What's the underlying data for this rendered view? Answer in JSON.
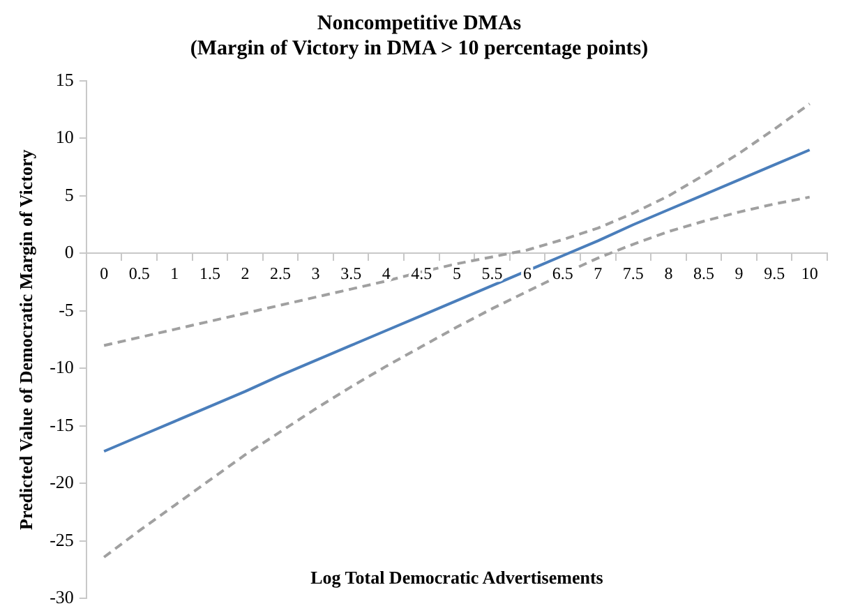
{
  "chart_data": {
    "type": "line",
    "title": "Noncompetitive DMAs\n(Margin of Victory in DMA > 10 percentage points)",
    "xlabel": "Log Total Democratic Advertisements",
    "ylabel": "Predicted Value of Democratic Margin of Victory",
    "categories": [
      "0",
      "0.5",
      "1",
      "1.5",
      "2",
      "2.5",
      "3",
      "3.5",
      "4",
      "4.5",
      "5",
      "5.5",
      "6",
      "6.5",
      "7",
      "7.5",
      "8",
      "8.5",
      "9",
      "9.5",
      "10"
    ],
    "series": [
      {
        "color": "#4a7ebb",
        "line_style": "solid",
        "values": [
          -17.2,
          -15.9,
          -14.6,
          -13.3,
          -12,
          -10.6,
          -9.3,
          -8,
          -6.7,
          -5.4,
          -4.1,
          -2.8,
          -1.5,
          -0.2,
          1.1,
          2.5,
          3.8,
          5.1,
          6.4,
          7.7,
          9
        ]
      },
      {
        "color": "#a0a0a0",
        "line_style": "dashed",
        "values": [
          -8,
          -7.3,
          -6.6,
          -5.9,
          -5.2,
          -4.5,
          -3.8,
          -3.1,
          -2.4,
          -1.6,
          -0.9,
          -0.3,
          0.3,
          1.2,
          2.2,
          3.5,
          5,
          6.8,
          8.7,
          10.8,
          13
        ]
      },
      {
        "color": "#a0a0a0",
        "line_style": "dashed",
        "values": [
          -26.4,
          -24.1,
          -21.9,
          -19.7,
          -17.5,
          -15.5,
          -13.5,
          -11.6,
          -9.8,
          -8.1,
          -6.4,
          -4.8,
          -3.3,
          -1.8,
          -0.4,
          0.8,
          1.9,
          2.8,
          3.6,
          4.3,
          4.9
        ]
      }
    ],
    "ylim": [
      -30,
      15
    ],
    "yticks": [
      -30,
      -25,
      -20,
      -15,
      -10,
      -5,
      0,
      5,
      10,
      15
    ],
    "grid": false,
    "legend": false,
    "marker": "none"
  }
}
